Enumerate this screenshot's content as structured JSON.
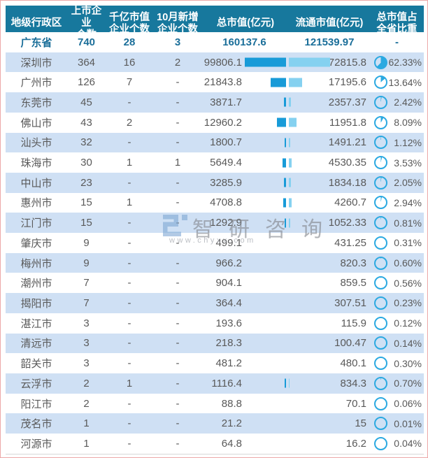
{
  "header": {
    "columns": [
      {
        "line1": "地级行政区",
        "line2": ""
      },
      {
        "line1": "上市企业",
        "line2": "个数"
      },
      {
        "line1": "千亿市值",
        "line2": "企业个数"
      },
      {
        "line1": "10月新增",
        "line2": "企业个数"
      },
      {
        "line1": "总市值(亿元)",
        "line2": ""
      },
      {
        "line1": "流通市值(亿元)",
        "line2": ""
      },
      {
        "line1": "总市值占",
        "line2": "全省比重"
      }
    ]
  },
  "watermark": {
    "brand": "智研咨询",
    "url": "www.chyxx.com"
  },
  "colors": {
    "header_bg": "#17789D",
    "row_alt_bg": "#CFE0F4",
    "body_text": "#595959",
    "summary_text": "#1A6E99",
    "bar_dark": "#189BD8",
    "bar_light": "#85D1F0",
    "pie_accent": "#2BA9E1",
    "frame_border": "#ECA8A8",
    "watermark_logo": "#7FA8D4"
  },
  "chart_data": {
    "type": "table",
    "columns": [
      "地级行政区",
      "上市企业个数",
      "千亿市值企业个数",
      "10月新增企业个数",
      "总市值(亿元)",
      "流通市值(亿元)",
      "总市值占全省比重"
    ],
    "bars": {
      "note": "paired data bars between 总市值 and 流通市值 columns",
      "dark_series": "总市值",
      "light_series": "流通市值"
    },
    "rows": [
      {
        "region": "广东省",
        "listed": "740",
        "hundred_billion": "28",
        "new_oct": "3",
        "total_mv": "160137.6",
        "circulating_mv": "121539.97",
        "share": "-",
        "summary": true,
        "bar_dark": 0,
        "bar_light": 0
      },
      {
        "region": "深圳市",
        "listed": "364",
        "hundred_billion": "16",
        "new_oct": "2",
        "total_mv": "99806.1",
        "circulating_mv": "72815.8",
        "share": "62.33%",
        "summary": false,
        "bar_dark": 59,
        "bar_light": 59
      },
      {
        "region": "广州市",
        "listed": "126",
        "hundred_billion": "7",
        "new_oct": "-",
        "total_mv": "21843.8",
        "circulating_mv": "17195.6",
        "share": "13.64%",
        "summary": false,
        "bar_dark": 22,
        "bar_light": 19
      },
      {
        "region": "东莞市",
        "listed": "45",
        "hundred_billion": "-",
        "new_oct": "-",
        "total_mv": "3871.7",
        "circulating_mv": "2357.37",
        "share": "2.42%",
        "summary": false,
        "bar_dark": 3,
        "bar_light": 3
      },
      {
        "region": "佛山市",
        "listed": "43",
        "hundred_billion": "2",
        "new_oct": "-",
        "total_mv": "12960.2",
        "circulating_mv": "11951.8",
        "share": "8.09%",
        "summary": false,
        "bar_dark": 13,
        "bar_light": 11
      },
      {
        "region": "汕头市",
        "listed": "32",
        "hundred_billion": "-",
        "new_oct": "-",
        "total_mv": "1800.7",
        "circulating_mv": "1491.21",
        "share": "1.12%",
        "summary": false,
        "bar_dark": 2,
        "bar_light": 2
      },
      {
        "region": "珠海市",
        "listed": "30",
        "hundred_billion": "1",
        "new_oct": "1",
        "total_mv": "5649.4",
        "circulating_mv": "4530.35",
        "share": "3.53%",
        "summary": false,
        "bar_dark": 5,
        "bar_light": 4
      },
      {
        "region": "中山市",
        "listed": "23",
        "hundred_billion": "-",
        "new_oct": "-",
        "total_mv": "3285.9",
        "circulating_mv": "1834.18",
        "share": "2.05%",
        "summary": false,
        "bar_dark": 3,
        "bar_light": 3
      },
      {
        "region": "惠州市",
        "listed": "15",
        "hundred_billion": "1",
        "new_oct": "-",
        "total_mv": "4708.8",
        "circulating_mv": "4260.7",
        "share": "2.94%",
        "summary": false,
        "bar_dark": 4,
        "bar_light": 4
      },
      {
        "region": "江门市",
        "listed": "15",
        "hundred_billion": "-",
        "new_oct": "-",
        "total_mv": "1292.9",
        "circulating_mv": "1052.33",
        "share": "0.81%",
        "summary": false,
        "bar_dark": 2,
        "bar_light": 2
      },
      {
        "region": "肇庆市",
        "listed": "9",
        "hundred_billion": "-",
        "new_oct": "-",
        "total_mv": "499.1",
        "circulating_mv": "431.25",
        "share": "0.31%",
        "summary": false,
        "bar_dark": 0,
        "bar_light": 0
      },
      {
        "region": "梅州市",
        "listed": "9",
        "hundred_billion": "-",
        "new_oct": "-",
        "total_mv": "966.2",
        "circulating_mv": "820.3",
        "share": "0.60%",
        "summary": false,
        "bar_dark": 0,
        "bar_light": 0
      },
      {
        "region": "潮州市",
        "listed": "7",
        "hundred_billion": "-",
        "new_oct": "-",
        "total_mv": "904.1",
        "circulating_mv": "859.5",
        "share": "0.56%",
        "summary": false,
        "bar_dark": 0,
        "bar_light": 0
      },
      {
        "region": "揭阳市",
        "listed": "7",
        "hundred_billion": "-",
        "new_oct": "-",
        "total_mv": "364.4",
        "circulating_mv": "307.51",
        "share": "0.23%",
        "summary": false,
        "bar_dark": 0,
        "bar_light": 0
      },
      {
        "region": "湛江市",
        "listed": "3",
        "hundred_billion": "-",
        "new_oct": "-",
        "total_mv": "193.6",
        "circulating_mv": "115.9",
        "share": "0.12%",
        "summary": false,
        "bar_dark": 0,
        "bar_light": 0
      },
      {
        "region": "清远市",
        "listed": "3",
        "hundred_billion": "-",
        "new_oct": "-",
        "total_mv": "218.3",
        "circulating_mv": "100.47",
        "share": "0.14%",
        "summary": false,
        "bar_dark": 0,
        "bar_light": 0
      },
      {
        "region": "韶关市",
        "listed": "3",
        "hundred_billion": "-",
        "new_oct": "-",
        "total_mv": "481.2",
        "circulating_mv": "480.1",
        "share": "0.30%",
        "summary": false,
        "bar_dark": 0,
        "bar_light": 0
      },
      {
        "region": "云浮市",
        "listed": "2",
        "hundred_billion": "1",
        "new_oct": "-",
        "total_mv": "1116.4",
        "circulating_mv": "834.3",
        "share": "0.70%",
        "summary": false,
        "bar_dark": 2,
        "bar_light": 1
      },
      {
        "region": "阳江市",
        "listed": "2",
        "hundred_billion": "-",
        "new_oct": "-",
        "total_mv": "88.8",
        "circulating_mv": "70.1",
        "share": "0.06%",
        "summary": false,
        "bar_dark": 0,
        "bar_light": 0
      },
      {
        "region": "茂名市",
        "listed": "1",
        "hundred_billion": "-",
        "new_oct": "-",
        "total_mv": "21.2",
        "circulating_mv": "15",
        "share": "0.01%",
        "summary": false,
        "bar_dark": 0,
        "bar_light": 0
      },
      {
        "region": "河源市",
        "listed": "1",
        "hundred_billion": "-",
        "new_oct": "-",
        "total_mv": "64.8",
        "circulating_mv": "16.2",
        "share": "0.04%",
        "summary": false,
        "bar_dark": 0,
        "bar_light": 0
      }
    ]
  }
}
